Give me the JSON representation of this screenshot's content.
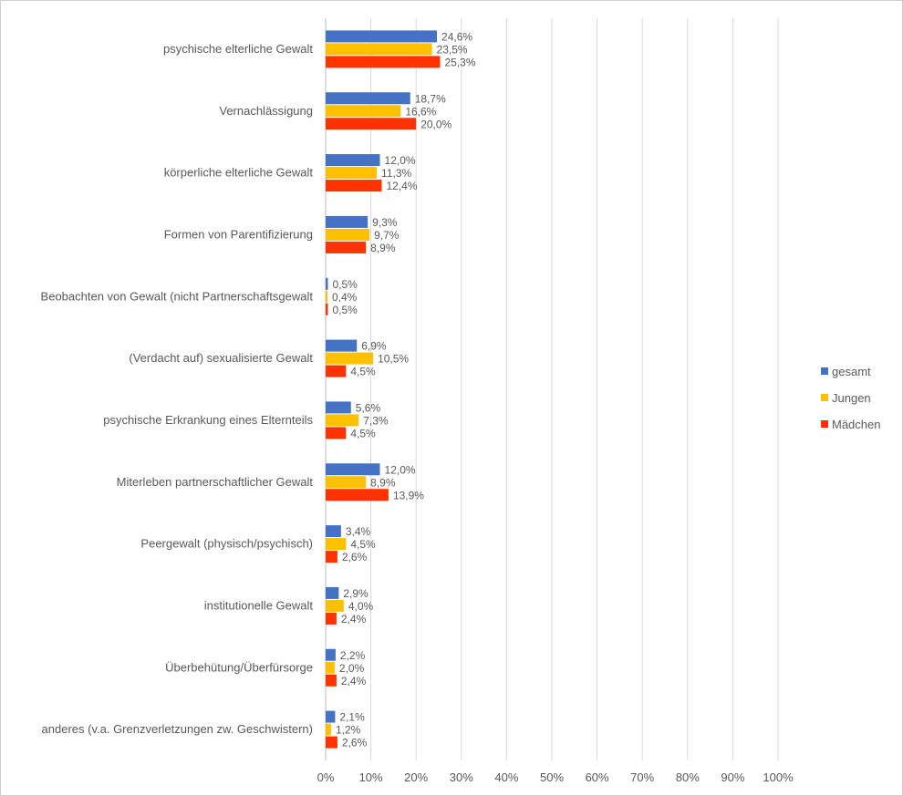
{
  "chart_data": {
    "type": "bar",
    "orientation": "horizontal",
    "title": "",
    "xlabel": "",
    "ylabel": "",
    "xlim": [
      0,
      100
    ],
    "x_ticks": [
      "0%",
      "10%",
      "20%",
      "30%",
      "40%",
      "50%",
      "60%",
      "70%",
      "80%",
      "90%",
      "100%"
    ],
    "grid": true,
    "legend_position": "right",
    "categories": [
      "psychische elterliche Gewalt",
      "Vernachlässigung",
      "körperliche elterliche Gewalt",
      "Formen von Parentifizierung",
      "Beobachten von Gewalt (nicht Partnerschaftsgewalt",
      "(Verdacht auf) sexualisierte Gewalt",
      "psychische Erkrankung eines Elternteils",
      "Miterleben partnerschaftlicher Gewalt",
      "Peergewalt (physisch/psychisch)",
      "institutionelle Gewalt",
      "Überbehütung/Überfürsorge",
      "anderes (v.a. Grenzverletzungen zw. Geschwistern)"
    ],
    "series": [
      {
        "name": "gesamt",
        "color": "#4472c4",
        "values": [
          24.6,
          18.7,
          12.0,
          9.3,
          0.5,
          6.9,
          5.6,
          12.0,
          3.4,
          2.9,
          2.2,
          2.1
        ],
        "labels": [
          "24,6%",
          "18,7%",
          "12,0%",
          "9,3%",
          "0,5%",
          "6,9%",
          "5,6%",
          "12,0%",
          "3,4%",
          "2,9%",
          "2,2%",
          "2,1%"
        ]
      },
      {
        "name": "Jungen",
        "color": "#ffc000",
        "values": [
          23.5,
          16.6,
          11.3,
          9.7,
          0.4,
          10.5,
          7.3,
          8.9,
          4.5,
          4.0,
          2.0,
          1.2
        ],
        "labels": [
          "23,5%",
          "16,6%",
          "11,3%",
          "9,7%",
          "0,4%",
          "10,5%",
          "7,3%",
          "8,9%",
          "4,5%",
          "4,0%",
          "2,0%",
          "1,2%"
        ]
      },
      {
        "name": "Mädchen",
        "color": "#ff3300",
        "values": [
          25.3,
          20.0,
          12.4,
          8.9,
          0.5,
          4.5,
          4.5,
          13.9,
          2.6,
          2.4,
          2.4,
          2.6
        ],
        "labels": [
          "25,3%",
          "20,0%",
          "12,4%",
          "8,9%",
          "0,5%",
          "4,5%",
          "4,5%",
          "13,9%",
          "2,6%",
          "2,4%",
          "2,4%",
          "2,6%"
        ]
      }
    ]
  }
}
